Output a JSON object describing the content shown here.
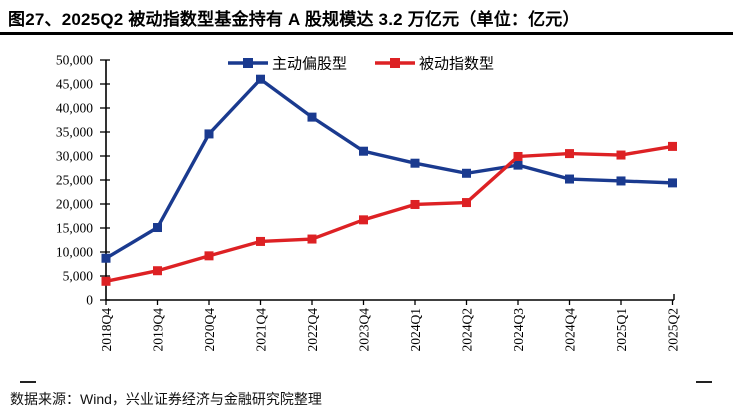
{
  "header": {
    "title": "图27、2025Q2 被动指数型基金持有 A 股规模达 3.2 万亿元（单位：亿元）"
  },
  "footer": {
    "source": "数据来源：Wind，兴业证券经济与金融研究院整理"
  },
  "colors": {
    "active_series": "#1A3A8F",
    "passive_series": "#DD2124",
    "axis": "#000000",
    "title_rule": "#000000"
  },
  "chart_data": {
    "type": "line",
    "title": "图27、2025Q2 被动指数型基金持有 A 股规模达 3.2 万亿元（单位：亿元）",
    "unit": "亿元",
    "categories": [
      "2018Q4",
      "2019Q4",
      "2020Q4",
      "2021Q4",
      "2022Q4",
      "2023Q4",
      "2024Q1",
      "2024Q2",
      "2024Q3",
      "2024Q4",
      "2025Q1",
      "2025Q2"
    ],
    "series": [
      {
        "key": "active",
        "name": "主动偏股型",
        "color": "#1A3A8F",
        "values": [
          8700,
          15100,
          34600,
          46000,
          38100,
          31000,
          28500,
          26400,
          28100,
          25200,
          24800,
          24400
        ]
      },
      {
        "key": "passive",
        "name": "被动指数型",
        "color": "#DD2124",
        "values": [
          3900,
          6100,
          9200,
          12200,
          12700,
          16700,
          19900,
          20300,
          29900,
          30500,
          30200,
          32000
        ]
      }
    ],
    "ylim": [
      0,
      50000
    ],
    "y_ticks": [
      0,
      5000,
      10000,
      15000,
      20000,
      25000,
      30000,
      35000,
      40000,
      45000,
      50000
    ],
    "xlabel": "",
    "ylabel": "",
    "grid": false,
    "legend_position": "top",
    "marker": "square"
  }
}
